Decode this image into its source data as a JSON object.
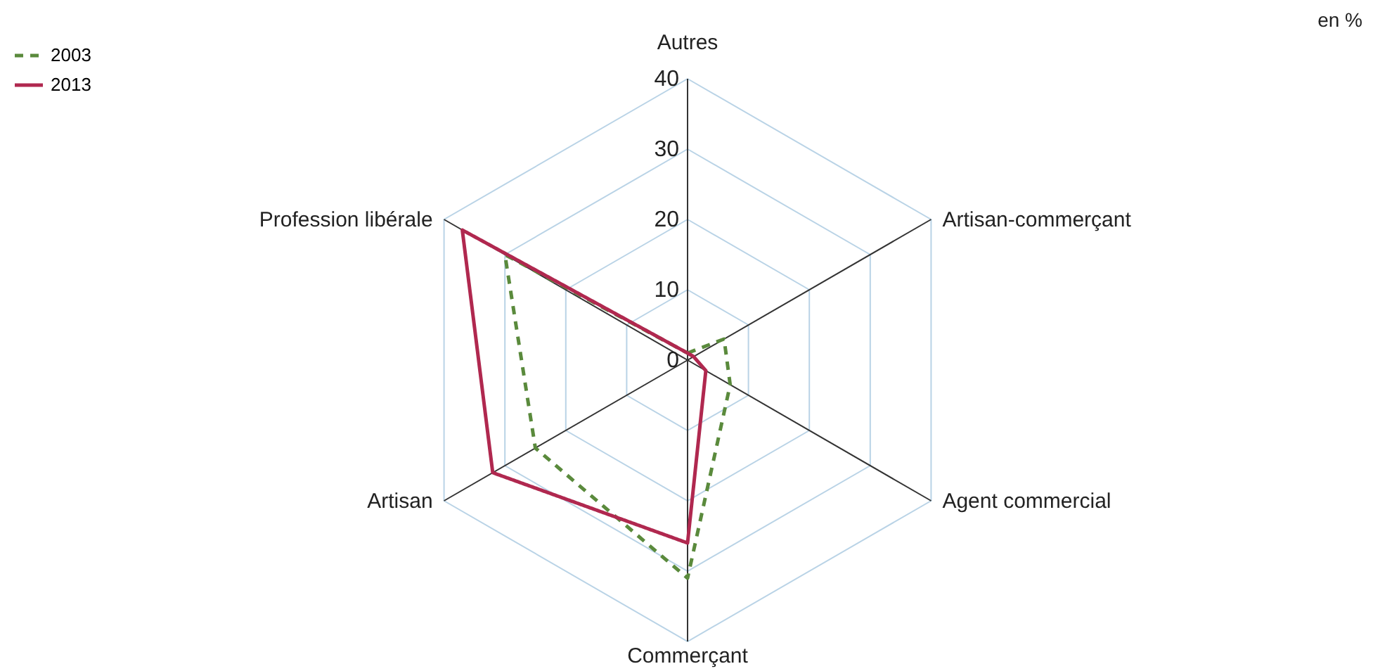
{
  "chart_data": {
    "type": "radar",
    "categories": [
      "Autres",
      "Artisan-commerçant",
      "Agent commercial",
      "Commerçant",
      "Artisan",
      "Profession libérale"
    ],
    "series": [
      {
        "name": "2003",
        "color": "#5a8a3c",
        "line_style": "dashed",
        "values": [
          1,
          6,
          7,
          31,
          25,
          30
        ]
      },
      {
        "name": "2013",
        "color": "#b0284f",
        "line_style": "solid",
        "values": [
          1,
          1,
          3,
          26,
          32,
          37
        ]
      }
    ],
    "ylim": [
      0,
      40
    ],
    "yticks": [
      0,
      10,
      20,
      30,
      40
    ],
    "grid": true,
    "legend": "top left",
    "annotations": [
      "en %"
    ]
  }
}
